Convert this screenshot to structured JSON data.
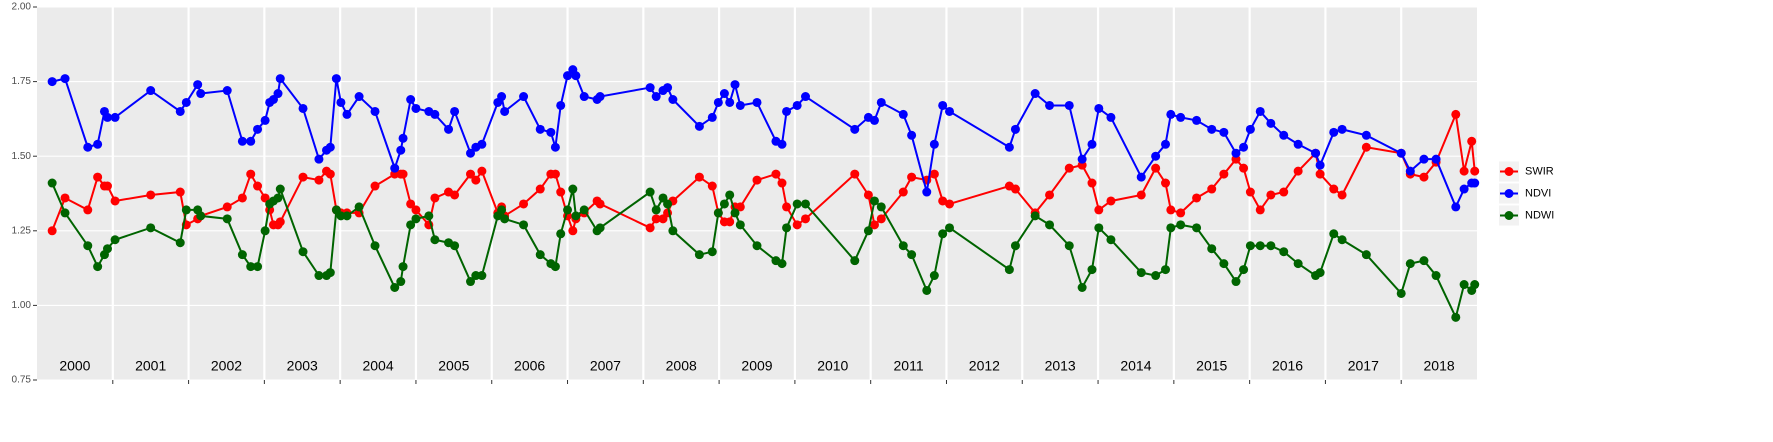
{
  "chart_data": {
    "type": "line",
    "x": [
      2000.2,
      2000.37,
      2000.67,
      2000.8,
      2000.89,
      2000.93,
      2001.03,
      2001.5,
      2001.89,
      2001.97,
      2002.12,
      2002.16,
      2002.51,
      2002.71,
      2002.82,
      2002.91,
      2003.01,
      2003.07,
      2003.12,
      2003.18,
      2003.21,
      2003.51,
      2003.72,
      2003.82,
      2003.87,
      2003.95,
      2004.01,
      2004.09,
      2004.25,
      2004.46,
      2004.72,
      2004.8,
      2004.83,
      2004.93,
      2005.0,
      2005.17,
      2005.25,
      2005.43,
      2005.51,
      2005.72,
      2005.79,
      2005.87,
      2006.08,
      2006.13,
      2006.17,
      2006.42,
      2006.64,
      2006.78,
      2006.84,
      2006.91,
      2007.0,
      2007.07,
      2007.11,
      2007.22,
      2007.39,
      2007.43,
      2008.09,
      2008.17,
      2008.26,
      2008.32,
      2008.39,
      2008.74,
      2008.91,
      2008.99,
      2009.07,
      2009.14,
      2009.21,
      2009.28,
      2009.5,
      2009.75,
      2009.83,
      2009.89,
      2010.03,
      2010.14,
      2010.79,
      2010.97,
      2011.05,
      2011.14,
      2011.43,
      2011.54,
      2011.74,
      2011.84,
      2011.95,
      2012.04,
      2012.83,
      2012.91,
      2013.17,
      2013.36,
      2013.62,
      2013.79,
      2013.92,
      2014.01,
      2014.17,
      2014.57,
      2014.76,
      2014.89,
      2014.96,
      2015.09,
      2015.3,
      2015.5,
      2015.66,
      2015.82,
      2015.92,
      2016.01,
      2016.14,
      2016.28,
      2016.45,
      2016.64,
      2016.87,
      2016.93,
      2017.11,
      2017.22,
      2017.54,
      2018.0,
      2018.12,
      2018.3,
      2018.46,
      2018.72,
      2018.83,
      2018.93,
      2018.97
    ],
    "series": [
      {
        "name": "SWIR",
        "color": "#ff0000",
        "values": [
          1.25,
          1.36,
          1.32,
          1.43,
          1.4,
          1.4,
          1.35,
          1.37,
          1.38,
          1.27,
          1.29,
          1.3,
          1.33,
          1.36,
          1.44,
          1.4,
          1.36,
          1.32,
          1.27,
          1.27,
          1.28,
          1.43,
          1.42,
          1.45,
          1.44,
          1.32,
          1.31,
          1.31,
          1.31,
          1.4,
          1.44,
          1.44,
          1.44,
          1.34,
          1.32,
          1.27,
          1.36,
          1.38,
          1.37,
          1.44,
          1.42,
          1.45,
          1.31,
          1.33,
          1.3,
          1.34,
          1.39,
          1.44,
          1.44,
          1.38,
          1.3,
          1.25,
          1.29,
          1.31,
          1.35,
          1.34,
          1.26,
          1.29,
          1.29,
          1.31,
          1.35,
          1.43,
          1.4,
          1.31,
          1.28,
          1.28,
          1.33,
          1.33,
          1.42,
          1.44,
          1.41,
          1.33,
          1.27,
          1.29,
          1.44,
          1.37,
          1.27,
          1.29,
          1.38,
          1.43,
          1.42,
          1.44,
          1.35,
          1.34,
          1.4,
          1.39,
          1.31,
          1.37,
          1.46,
          1.47,
          1.41,
          1.32,
          1.35,
          1.37,
          1.46,
          1.41,
          1.32,
          1.31,
          1.36,
          1.39,
          1.44,
          1.49,
          1.46,
          1.38,
          1.32,
          1.37,
          1.38,
          1.45,
          1.51,
          1.44,
          1.39,
          1.37,
          1.53,
          1.51,
          1.44,
          1.43,
          1.48,
          1.64,
          1.45,
          1.55,
          1.45
        ]
      },
      {
        "name": "NDVI",
        "color": "#0000ff",
        "values": [
          1.75,
          1.76,
          1.53,
          1.54,
          1.65,
          1.63,
          1.63,
          1.72,
          1.65,
          1.68,
          1.74,
          1.71,
          1.72,
          1.55,
          1.55,
          1.59,
          1.62,
          1.68,
          1.69,
          1.71,
          1.76,
          1.66,
          1.49,
          1.52,
          1.53,
          1.76,
          1.68,
          1.64,
          1.7,
          1.65,
          1.46,
          1.52,
          1.56,
          1.69,
          1.66,
          1.65,
          1.64,
          1.59,
          1.65,
          1.51,
          1.53,
          1.54,
          1.68,
          1.7,
          1.65,
          1.7,
          1.59,
          1.58,
          1.53,
          1.67,
          1.77,
          1.79,
          1.77,
          1.7,
          1.69,
          1.7,
          1.73,
          1.7,
          1.72,
          1.73,
          1.69,
          1.6,
          1.63,
          1.68,
          1.71,
          1.68,
          1.74,
          1.67,
          1.68,
          1.55,
          1.54,
          1.65,
          1.67,
          1.7,
          1.59,
          1.63,
          1.62,
          1.68,
          1.64,
          1.57,
          1.38,
          1.54,
          1.67,
          1.65,
          1.53,
          1.59,
          1.71,
          1.67,
          1.67,
          1.49,
          1.54,
          1.66,
          1.63,
          1.43,
          1.5,
          1.54,
          1.64,
          1.63,
          1.62,
          1.59,
          1.58,
          1.51,
          1.53,
          1.59,
          1.65,
          1.61,
          1.57,
          1.54,
          1.51,
          1.47,
          1.58,
          1.59,
          1.57,
          1.51,
          1.45,
          1.49,
          1.49,
          1.33,
          1.39,
          1.41,
          1.41
        ]
      },
      {
        "name": "NDWI",
        "color": "#006400",
        "values": [
          1.41,
          1.31,
          1.2,
          1.13,
          1.17,
          1.19,
          1.22,
          1.26,
          1.21,
          1.32,
          1.32,
          1.3,
          1.29,
          1.17,
          1.13,
          1.13,
          1.25,
          1.34,
          1.35,
          1.36,
          1.39,
          1.18,
          1.1,
          1.1,
          1.11,
          1.32,
          1.3,
          1.3,
          1.33,
          1.2,
          1.06,
          1.08,
          1.13,
          1.27,
          1.29,
          1.3,
          1.22,
          1.21,
          1.2,
          1.08,
          1.1,
          1.1,
          1.3,
          1.32,
          1.29,
          1.27,
          1.17,
          1.14,
          1.13,
          1.24,
          1.32,
          1.39,
          1.3,
          1.32,
          1.25,
          1.26,
          1.38,
          1.32,
          1.36,
          1.34,
          1.25,
          1.17,
          1.18,
          1.31,
          1.34,
          1.37,
          1.31,
          1.27,
          1.2,
          1.15,
          1.14,
          1.26,
          1.34,
          1.34,
          1.15,
          1.25,
          1.35,
          1.33,
          1.2,
          1.17,
          1.05,
          1.1,
          1.24,
          1.26,
          1.12,
          1.2,
          1.3,
          1.27,
          1.2,
          1.06,
          1.12,
          1.26,
          1.22,
          1.11,
          1.1,
          1.12,
          1.26,
          1.27,
          1.26,
          1.19,
          1.14,
          1.08,
          1.12,
          1.2,
          1.2,
          1.2,
          1.18,
          1.14,
          1.1,
          1.11,
          1.24,
          1.22,
          1.17,
          1.04,
          1.14,
          1.15,
          1.1,
          0.96,
          1.07,
          1.05,
          1.07
        ]
      }
    ],
    "xlim": [
      2000,
      2019
    ],
    "xticks": [
      2001,
      2002,
      2003,
      2004,
      2005,
      2006,
      2007,
      2008,
      2009,
      2010,
      2011,
      2012,
      2013,
      2014,
      2015,
      2016,
      2017,
      2018
    ],
    "year_labels": [
      {
        "value": 2000.5,
        "label": "2000"
      },
      {
        "value": 2001.5,
        "label": "2001"
      },
      {
        "value": 2002.5,
        "label": "2002"
      },
      {
        "value": 2003.5,
        "label": "2003"
      },
      {
        "value": 2004.5,
        "label": "2004"
      },
      {
        "value": 2005.5,
        "label": "2005"
      },
      {
        "value": 2006.5,
        "label": "2006"
      },
      {
        "value": 2007.5,
        "label": "2007"
      },
      {
        "value": 2008.5,
        "label": "2008"
      },
      {
        "value": 2009.5,
        "label": "2009"
      },
      {
        "value": 2010.5,
        "label": "2010"
      },
      {
        "value": 2011.5,
        "label": "2011"
      },
      {
        "value": 2012.5,
        "label": "2012"
      },
      {
        "value": 2013.5,
        "label": "2013"
      },
      {
        "value": 2014.5,
        "label": "2014"
      },
      {
        "value": 2015.5,
        "label": "2015"
      },
      {
        "value": 2016.5,
        "label": "2016"
      },
      {
        "value": 2017.5,
        "label": "2017"
      },
      {
        "value": 2018.5,
        "label": "2018"
      }
    ],
    "ylim": [
      0.75,
      2.0
    ],
    "yticks": [
      {
        "value": 0.75,
        "label": "0.75"
      },
      {
        "value": 1.0,
        "label": "1.00"
      },
      {
        "value": 1.25,
        "label": "1.25"
      },
      {
        "value": 1.5,
        "label": "1.50"
      },
      {
        "value": 1.75,
        "label": "1.75"
      },
      {
        "value": 2.0,
        "label": "2.00"
      }
    ],
    "grid": true,
    "legend": "right"
  }
}
